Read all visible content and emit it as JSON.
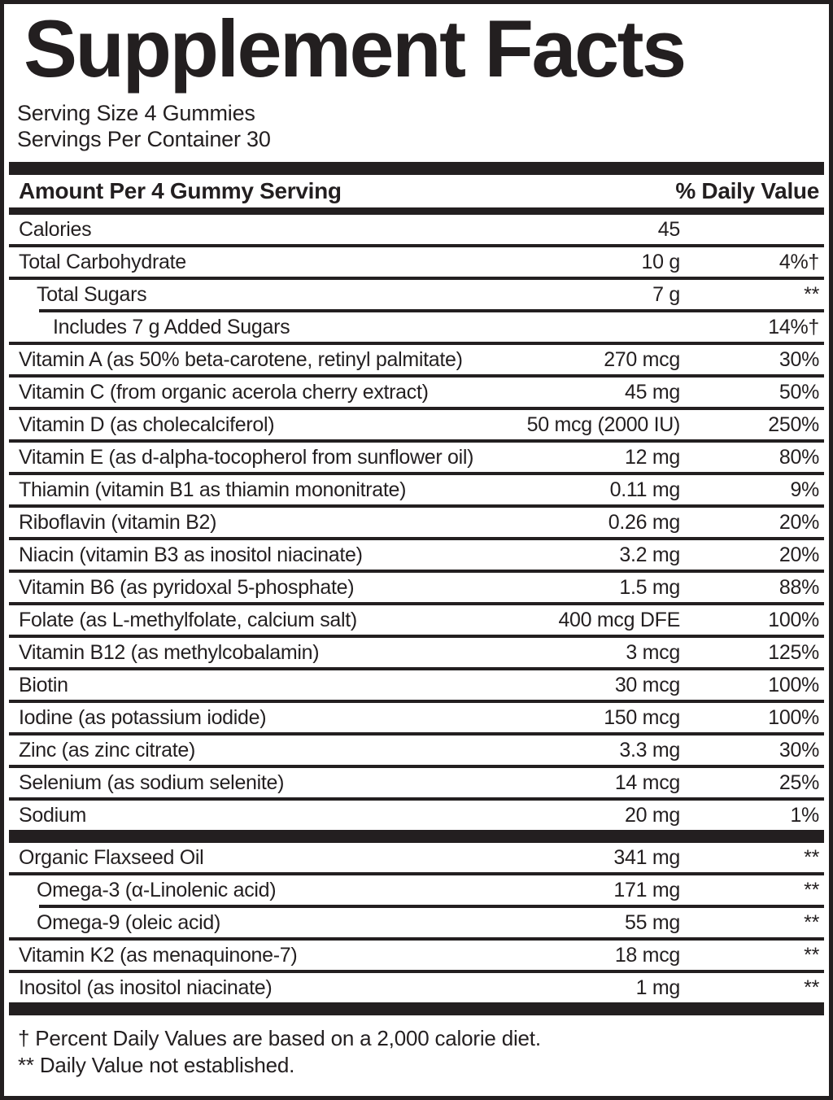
{
  "title": "Supplement Facts",
  "serving_info": {
    "serving_size": "Serving Size 4 Gummies",
    "servings_per_container": "Servings Per Container 30"
  },
  "table_header": {
    "amount_label": "Amount Per 4 Gummy Serving",
    "daily_value_label": "% Daily Value"
  },
  "sections": [
    {
      "name": "nutrients",
      "rows": [
        {
          "label": "Calories",
          "amount": "45",
          "dv": "",
          "indent": 0,
          "sep": "full"
        },
        {
          "label": "Total Carbohydrate",
          "amount": "10 g",
          "dv": "4%†",
          "indent": 0,
          "sep": "full"
        },
        {
          "label": "Total Sugars",
          "amount": "7 g",
          "dv": "**",
          "indent": 1,
          "sep": "indent"
        },
        {
          "label": "Includes 7 g Added Sugars",
          "amount": "",
          "dv": "14%†",
          "indent": 2,
          "sep": "full"
        },
        {
          "label": "Vitamin A (as 50% beta-carotene, retinyl palmitate)",
          "amount": "270 mcg",
          "dv": "30%",
          "indent": 0,
          "sep": "full"
        },
        {
          "label": "Vitamin C (from organic acerola cherry extract)",
          "amount": "45 mg",
          "dv": "50%",
          "indent": 0,
          "sep": "full"
        },
        {
          "label": "Vitamin D (as cholecalciferol)",
          "amount": "50 mcg (2000 IU)",
          "dv": "250%",
          "indent": 0,
          "sep": "full"
        },
        {
          "label": "Vitamin E (as d-alpha-tocopherol from sunflower oil)",
          "amount": "12 mg",
          "dv": "80%",
          "indent": 0,
          "sep": "full"
        },
        {
          "label": "Thiamin (vitamin B1 as thiamin mononitrate)",
          "amount": "0.11 mg",
          "dv": "9%",
          "indent": 0,
          "sep": "full"
        },
        {
          "label": "Riboflavin (vitamin B2)",
          "amount": "0.26 mg",
          "dv": "20%",
          "indent": 0,
          "sep": "full"
        },
        {
          "label": "Niacin (vitamin B3 as inositol niacinate)",
          "amount": "3.2 mg",
          "dv": "20%",
          "indent": 0,
          "sep": "full"
        },
        {
          "label": "Vitamin B6 (as pyridoxal 5-phosphate)",
          "amount": "1.5 mg",
          "dv": "88%",
          "indent": 0,
          "sep": "full"
        },
        {
          "label": "Folate (as L-methylfolate, calcium salt)",
          "amount": "400 mcg DFE",
          "dv": "100%",
          "indent": 0,
          "sep": "full"
        },
        {
          "label": "Vitamin B12 (as methylcobalamin)",
          "amount": "3 mcg",
          "dv": "125%",
          "indent": 0,
          "sep": "full"
        },
        {
          "label": "Biotin",
          "amount": "30 mcg",
          "dv": "100%",
          "indent": 0,
          "sep": "full"
        },
        {
          "label": "Iodine (as potassium iodide)",
          "amount": "150 mcg",
          "dv": "100%",
          "indent": 0,
          "sep": "full"
        },
        {
          "label": "Zinc (as zinc citrate)",
          "amount": "3.3 mg",
          "dv": "30%",
          "indent": 0,
          "sep": "full"
        },
        {
          "label": "Selenium (as sodium selenite)",
          "amount": "14 mcg",
          "dv": "25%",
          "indent": 0,
          "sep": "full"
        },
        {
          "label": "Sodium",
          "amount": "20 mg",
          "dv": "1%",
          "indent": 0,
          "sep": "none"
        }
      ]
    },
    {
      "name": "other-ingredients",
      "rows": [
        {
          "label": "Organic Flaxseed Oil",
          "amount": "341 mg",
          "dv": "**",
          "indent": 0,
          "sep": "full"
        },
        {
          "label": "Omega-3 (α-Linolenic acid)",
          "amount": "171 mg",
          "dv": "**",
          "indent": 1,
          "sep": "indent"
        },
        {
          "label": "Omega-9 (oleic acid)",
          "amount": "55 mg",
          "dv": "**",
          "indent": 1,
          "sep": "full"
        },
        {
          "label": "Vitamin K2 (as menaquinone-7)",
          "amount": "18 mcg",
          "dv": "**",
          "indent": 0,
          "sep": "full"
        },
        {
          "label": "Inositol (as inositol niacinate)",
          "amount": "1 mg",
          "dv": "**",
          "indent": 0,
          "sep": "none"
        }
      ]
    }
  ],
  "footnotes": [
    "† Percent Daily Values are based on a 2,000 calorie diet.",
    "** Daily Value not established."
  ],
  "colors": {
    "ink": "#231f20",
    "paper": "#ffffff"
  }
}
